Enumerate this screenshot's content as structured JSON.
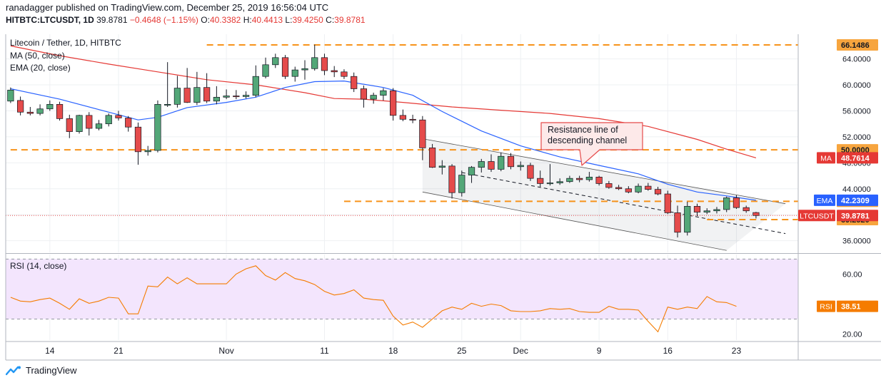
{
  "header": {
    "author": "ranadagger",
    "published": "published on TradingView.com, December 25, 2019 16:56:04 UTC",
    "symbol": "HITBTC:LTCUSDT, 1D",
    "last": "39.8781",
    "change": "−0.4648 (−1.15%)",
    "o_label": "O:",
    "o_val": "40.3382",
    "h_label": "H:",
    "h_val": "40.4413",
    "l_label": "L:",
    "l_val": "39.4250",
    "c_label": "C:",
    "c_val": "39.8781"
  },
  "legend": {
    "title": "Litecoin / Tether, 1D, HITBTC",
    "ma": "MA (50, close)",
    "ema": "EMA (20, close)",
    "rsi": "RSI (14, close)"
  },
  "annotation": {
    "line1": "Resistance line of",
    "line2": "descending channel"
  },
  "brand": "TradingView",
  "colors": {
    "up": "#53a778",
    "down": "#e54b4b",
    "ema": "#2962ff",
    "ma": "#e53935",
    "level": "#f7931a",
    "rsi": "#f57c00",
    "rsi_bg": "#f3e5fd"
  },
  "chart_data": [
    {
      "type": "candlestick",
      "x_labels": [
        {
          "i": 4,
          "label": "14"
        },
        {
          "i": 11,
          "label": "21"
        },
        {
          "i": 22,
          "label": "Nov"
        },
        {
          "i": 32,
          "label": "11"
        },
        {
          "i": 39,
          "label": "18"
        },
        {
          "i": 46,
          "label": "25"
        },
        {
          "i": 52,
          "label": "Dec"
        },
        {
          "i": 60,
          "label": "9"
        },
        {
          "i": 67,
          "label": "16"
        },
        {
          "i": 74,
          "label": "23"
        }
      ],
      "y_ticks": [
        36,
        40,
        44,
        48,
        52,
        56,
        60,
        64
      ],
      "y_tick_labels": [
        "36.0000",
        "40.0000",
        "44.0000",
        "48.0000",
        "52.0000",
        "56.0000",
        "60.0000",
        "64.0000"
      ],
      "ylim": [
        34.2,
        67.8
      ],
      "xlim": [
        -0.5,
        80.3
      ],
      "candles": [
        {
          "o": 57.5,
          "h": 59.6,
          "l": 57.2,
          "c": 59.2
        },
        {
          "o": 57.6,
          "h": 58.2,
          "l": 55.3,
          "c": 55.8
        },
        {
          "o": 55.8,
          "h": 56.6,
          "l": 55.3,
          "c": 55.6
        },
        {
          "o": 55.6,
          "h": 57.0,
          "l": 55.3,
          "c": 56.3
        },
        {
          "o": 56.3,
          "h": 57.6,
          "l": 56.0,
          "c": 57.0
        },
        {
          "o": 57.0,
          "h": 57.4,
          "l": 54.5,
          "c": 54.8
        },
        {
          "o": 54.8,
          "h": 55.4,
          "l": 51.8,
          "c": 52.8
        },
        {
          "o": 52.8,
          "h": 55.4,
          "l": 52.5,
          "c": 55.3
        },
        {
          "o": 55.3,
          "h": 55.8,
          "l": 52.2,
          "c": 53.3
        },
        {
          "o": 53.3,
          "h": 54.6,
          "l": 53.0,
          "c": 54.0
        },
        {
          "o": 54.0,
          "h": 55.6,
          "l": 53.6,
          "c": 55.3
        },
        {
          "o": 55.3,
          "h": 56.0,
          "l": 54.5,
          "c": 54.9
        },
        {
          "o": 54.9,
          "h": 55.2,
          "l": 52.8,
          "c": 53.5
        },
        {
          "o": 53.5,
          "h": 54.2,
          "l": 47.7,
          "c": 49.7
        },
        {
          "o": 49.7,
          "h": 50.6,
          "l": 49.1,
          "c": 49.9
        },
        {
          "o": 49.9,
          "h": 57.6,
          "l": 49.6,
          "c": 57.0
        },
        {
          "o": 57.0,
          "h": 63.5,
          "l": 56.6,
          "c": 57.0
        },
        {
          "o": 57.0,
          "h": 61.4,
          "l": 56.5,
          "c": 59.5
        },
        {
          "o": 59.5,
          "h": 62.6,
          "l": 57.2,
          "c": 57.3
        },
        {
          "o": 57.3,
          "h": 62.0,
          "l": 56.9,
          "c": 59.6
        },
        {
          "o": 59.6,
          "h": 61.8,
          "l": 57.2,
          "c": 57.5
        },
        {
          "o": 57.5,
          "h": 59.8,
          "l": 57.0,
          "c": 58.1
        },
        {
          "o": 58.1,
          "h": 59.3,
          "l": 57.8,
          "c": 58.3
        },
        {
          "o": 58.3,
          "h": 59.2,
          "l": 57.8,
          "c": 58.2
        },
        {
          "o": 58.2,
          "h": 59.0,
          "l": 57.9,
          "c": 58.4
        },
        {
          "o": 58.4,
          "h": 63.0,
          "l": 58.1,
          "c": 61.3
        },
        {
          "o": 61.3,
          "h": 64.2,
          "l": 61.0,
          "c": 63.1
        },
        {
          "o": 63.1,
          "h": 64.8,
          "l": 62.6,
          "c": 64.2
        },
        {
          "o": 64.2,
          "h": 64.6,
          "l": 60.9,
          "c": 61.3
        },
        {
          "o": 61.3,
          "h": 62.8,
          "l": 60.5,
          "c": 62.3
        },
        {
          "o": 62.3,
          "h": 63.8,
          "l": 60.8,
          "c": 62.5
        },
        {
          "o": 62.5,
          "h": 66.2,
          "l": 62.2,
          "c": 64.2
        },
        {
          "o": 64.2,
          "h": 64.8,
          "l": 61.5,
          "c": 62.2
        },
        {
          "o": 62.2,
          "h": 62.9,
          "l": 61.2,
          "c": 62.0
        },
        {
          "o": 62.0,
          "h": 62.4,
          "l": 60.9,
          "c": 61.3
        },
        {
          "o": 61.3,
          "h": 61.9,
          "l": 58.9,
          "c": 59.4
        },
        {
          "o": 59.4,
          "h": 59.9,
          "l": 56.5,
          "c": 57.8
        },
        {
          "o": 57.8,
          "h": 58.8,
          "l": 57.1,
          "c": 58.4
        },
        {
          "o": 58.4,
          "h": 59.5,
          "l": 57.6,
          "c": 59.1
        },
        {
          "o": 59.1,
          "h": 59.5,
          "l": 54.5,
          "c": 55.3
        },
        {
          "o": 55.3,
          "h": 56.2,
          "l": 54.4,
          "c": 54.7
        },
        {
          "o": 54.7,
          "h": 55.4,
          "l": 54.1,
          "c": 54.6
        },
        {
          "o": 54.6,
          "h": 55.2,
          "l": 48.4,
          "c": 50.3
        },
        {
          "o": 50.3,
          "h": 50.9,
          "l": 47.2,
          "c": 47.3
        },
        {
          "o": 47.3,
          "h": 48.4,
          "l": 46.2,
          "c": 47.5
        },
        {
          "o": 47.5,
          "h": 47.8,
          "l": 42.5,
          "c": 43.4
        },
        {
          "o": 43.4,
          "h": 46.8,
          "l": 42.8,
          "c": 46.1
        },
        {
          "o": 46.1,
          "h": 47.5,
          "l": 44.9,
          "c": 47.3
        },
        {
          "o": 47.3,
          "h": 48.6,
          "l": 46.5,
          "c": 48.2
        },
        {
          "o": 48.2,
          "h": 49.3,
          "l": 46.6,
          "c": 47.0
        },
        {
          "o": 47.0,
          "h": 49.6,
          "l": 46.7,
          "c": 49.0
        },
        {
          "o": 49.0,
          "h": 49.5,
          "l": 47.0,
          "c": 47.4
        },
        {
          "o": 47.4,
          "h": 48.2,
          "l": 46.8,
          "c": 47.6
        },
        {
          "o": 47.6,
          "h": 48.0,
          "l": 45.2,
          "c": 45.6
        },
        {
          "o": 45.6,
          "h": 46.8,
          "l": 44.3,
          "c": 44.8
        },
        {
          "o": 44.8,
          "h": 47.8,
          "l": 44.5,
          "c": 44.9
        },
        {
          "o": 44.9,
          "h": 45.6,
          "l": 44.6,
          "c": 45.1
        },
        {
          "o": 45.1,
          "h": 46.0,
          "l": 44.9,
          "c": 45.6
        },
        {
          "o": 45.6,
          "h": 46.0,
          "l": 45.0,
          "c": 45.4
        },
        {
          "o": 45.4,
          "h": 46.6,
          "l": 45.1,
          "c": 45.8
        },
        {
          "o": 45.8,
          "h": 46.0,
          "l": 44.5,
          "c": 44.8
        },
        {
          "o": 44.8,
          "h": 45.2,
          "l": 44.0,
          "c": 44.2
        },
        {
          "o": 44.2,
          "h": 44.6,
          "l": 43.8,
          "c": 44.0
        },
        {
          "o": 44.0,
          "h": 44.4,
          "l": 43.3,
          "c": 43.5
        },
        {
          "o": 43.5,
          "h": 44.8,
          "l": 43.3,
          "c": 44.4
        },
        {
          "o": 44.4,
          "h": 44.9,
          "l": 43.7,
          "c": 43.9
        },
        {
          "o": 43.9,
          "h": 44.3,
          "l": 43.0,
          "c": 43.2
        },
        {
          "o": 43.2,
          "h": 43.7,
          "l": 40.1,
          "c": 40.3
        },
        {
          "o": 40.3,
          "h": 41.4,
          "l": 36.5,
          "c": 37.3
        },
        {
          "o": 37.3,
          "h": 42.0,
          "l": 36.8,
          "c": 41.3
        },
        {
          "o": 41.3,
          "h": 41.7,
          "l": 39.8,
          "c": 40.4
        },
        {
          "o": 40.4,
          "h": 41.0,
          "l": 40.1,
          "c": 40.6
        },
        {
          "o": 40.6,
          "h": 41.2,
          "l": 40.2,
          "c": 40.8
        },
        {
          "o": 40.8,
          "h": 42.8,
          "l": 40.4,
          "c": 42.6
        },
        {
          "o": 42.6,
          "h": 43.0,
          "l": 40.9,
          "c": 41.1
        },
        {
          "o": 41.1,
          "h": 41.4,
          "l": 40.3,
          "c": 40.6
        },
        {
          "o": 40.3382,
          "h": 40.4413,
          "l": 39.425,
          "c": 39.8781
        }
      ],
      "ema20": [
        {
          "i": 0,
          "v": 59.4
        },
        {
          "i": 5,
          "v": 57.8
        },
        {
          "i": 10,
          "v": 55.8
        },
        {
          "i": 13,
          "v": 54.6
        },
        {
          "i": 15,
          "v": 55.0
        },
        {
          "i": 18,
          "v": 56.5
        },
        {
          "i": 22,
          "v": 57.3
        },
        {
          "i": 25,
          "v": 58.1
        },
        {
          "i": 28,
          "v": 59.6
        },
        {
          "i": 31,
          "v": 60.5
        },
        {
          "i": 34,
          "v": 60.6
        },
        {
          "i": 38,
          "v": 59.6
        },
        {
          "i": 41,
          "v": 58.4
        },
        {
          "i": 44,
          "v": 55.9
        },
        {
          "i": 48,
          "v": 52.9
        },
        {
          "i": 52,
          "v": 50.6
        },
        {
          "i": 56,
          "v": 48.9
        },
        {
          "i": 60,
          "v": 47.6
        },
        {
          "i": 64,
          "v": 46.3
        },
        {
          "i": 67,
          "v": 44.7
        },
        {
          "i": 70,
          "v": 43.5
        },
        {
          "i": 73,
          "v": 42.9
        },
        {
          "i": 76,
          "v": 42.2309
        }
      ],
      "ma50": [
        {
          "i": 0,
          "v": 66.0
        },
        {
          "i": 5,
          "v": 64.5
        },
        {
          "i": 10,
          "v": 63.2
        },
        {
          "i": 15,
          "v": 62.0
        },
        {
          "i": 20,
          "v": 60.8
        },
        {
          "i": 25,
          "v": 60.0
        },
        {
          "i": 30,
          "v": 58.8
        },
        {
          "i": 33,
          "v": 57.9
        },
        {
          "i": 36,
          "v": 57.8
        },
        {
          "i": 40,
          "v": 57.3
        },
        {
          "i": 45,
          "v": 56.6
        },
        {
          "i": 50,
          "v": 56.1
        },
        {
          "i": 55,
          "v": 55.6
        },
        {
          "i": 60,
          "v": 54.8
        },
        {
          "i": 65,
          "v": 53.6
        },
        {
          "i": 70,
          "v": 51.6
        },
        {
          "i": 73,
          "v": 50.1
        },
        {
          "i": 76,
          "v": 48.7614
        }
      ],
      "levels": [
        {
          "value": 66.1486,
          "label": "66.1486",
          "x_from": 20
        },
        {
          "value": 50.0,
          "label": "50.0000",
          "x_from": 0
        },
        {
          "value": 42.0599,
          "label": "42.0599",
          "x_from": 34
        },
        {
          "value": 39.252,
          "label": "39.2520",
          "x_from": 71
        }
      ],
      "channel": {
        "upper": [
          [
            42,
            51.7
          ],
          [
            79,
            41.7
          ]
        ],
        "lower": [
          [
            42,
            43.5
          ],
          [
            73,
            34.5
          ]
        ],
        "mid": [
          [
            46,
            46.5
          ],
          [
            79,
            37.1
          ]
        ]
      },
      "current_price": 39.8781,
      "price_tags": {
        "ema": {
          "name": "EMA",
          "value": "42.2309"
        },
        "ma": {
          "name": "MA",
          "value": "48.7614"
        },
        "sym": {
          "name": "LTCUSDT",
          "value": "39.8781"
        }
      }
    },
    {
      "type": "line",
      "name": "RSI (14, close)",
      "y_ticks": [
        20,
        40,
        60
      ],
      "y_tick_labels": [
        "20.00",
        "40.00",
        "60.00"
      ],
      "band": [
        30,
        70
      ],
      "ylim": [
        16,
        73
      ],
      "values": [
        [
          0,
          44.5
        ],
        [
          1,
          42.0
        ],
        [
          2,
          41.5
        ],
        [
          3,
          43.0
        ],
        [
          4,
          44.0
        ],
        [
          5,
          40.5
        ],
        [
          6,
          36.5
        ],
        [
          7,
          43.5
        ],
        [
          8,
          40.5
        ],
        [
          9,
          42.0
        ],
        [
          10,
          44.5
        ],
        [
          11,
          44.0
        ],
        [
          12,
          33.5
        ],
        [
          13,
          33.5
        ],
        [
          14,
          52.0
        ],
        [
          15,
          51.5
        ],
        [
          16,
          58.0
        ],
        [
          17,
          53.5
        ],
        [
          18,
          57.5
        ],
        [
          19,
          53.5
        ],
        [
          20,
          53.5
        ],
        [
          21,
          53.5
        ],
        [
          22,
          53.5
        ],
        [
          23,
          60.0
        ],
        [
          24,
          63.5
        ],
        [
          25,
          65.5
        ],
        [
          26,
          59.0
        ],
        [
          27,
          56.0
        ],
        [
          28,
          61.0
        ],
        [
          29,
          57.0
        ],
        [
          30,
          55.5
        ],
        [
          31,
          53.0
        ],
        [
          32,
          48.5
        ],
        [
          33,
          46.0
        ],
        [
          34,
          47.0
        ],
        [
          35,
          49.5
        ],
        [
          36,
          44.0
        ],
        [
          37,
          43.0
        ],
        [
          38,
          42.5
        ],
        [
          39,
          32.0
        ],
        [
          40,
          26.0
        ],
        [
          41,
          28.0
        ],
        [
          42,
          24.5
        ],
        [
          43,
          30.0
        ],
        [
          44,
          35.5
        ],
        [
          45,
          38.0
        ],
        [
          46,
          36.5
        ],
        [
          47,
          40.5
        ],
        [
          48,
          38.5
        ],
        [
          49,
          40.0
        ],
        [
          50,
          39.0
        ],
        [
          51,
          35.5
        ],
        [
          52,
          35.0
        ],
        [
          53,
          35.0
        ],
        [
          54,
          35.5
        ],
        [
          55,
          37.0
        ],
        [
          56,
          36.5
        ],
        [
          57,
          37.0
        ],
        [
          58,
          35.0
        ],
        [
          59,
          34.5
        ],
        [
          60,
          34.5
        ],
        [
          61,
          38.5
        ],
        [
          62,
          36.5
        ],
        [
          63,
          36.5
        ],
        [
          64,
          36.0
        ],
        [
          65,
          28.5
        ],
        [
          66,
          21.5
        ],
        [
          67,
          38.0
        ],
        [
          68,
          36.5
        ],
        [
          69,
          38.0
        ],
        [
          70,
          37.0
        ],
        [
          71,
          45.0
        ],
        [
          72,
          41.5
        ],
        [
          73,
          41.0
        ],
        [
          74,
          38.51
        ]
      ],
      "last": "38.51",
      "tag_name": "RSI"
    }
  ]
}
